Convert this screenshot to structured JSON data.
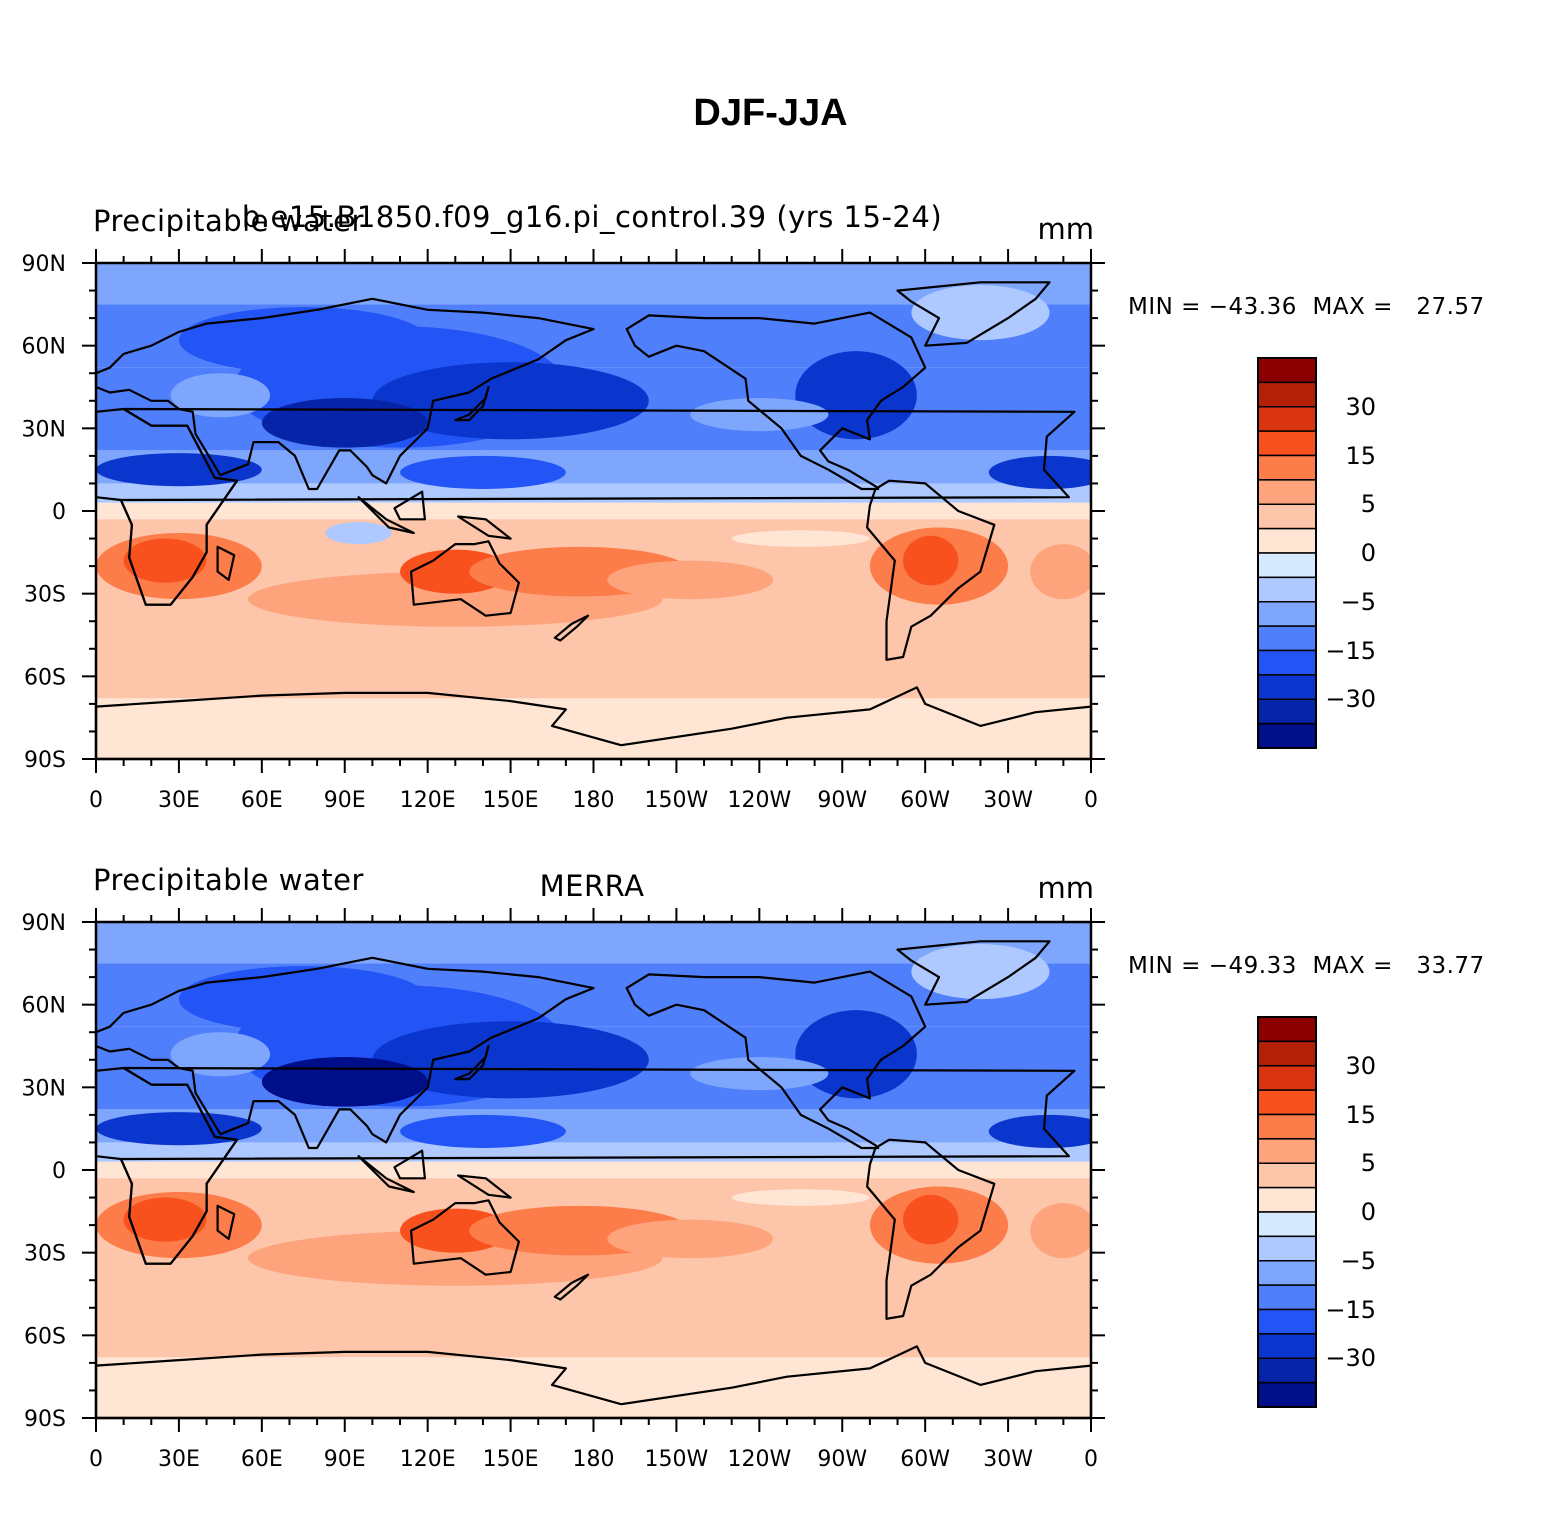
{
  "title": "DJF-JJA",
  "panels": [
    {
      "left_title": "Precipitable water",
      "center_title": "b.e15.B1850.f09_g16.pi_control.39 (yrs 15-24)",
      "right_title": "mm",
      "minmax": "MIN = −43.36  MAX =   27.57"
    },
    {
      "left_title": "Precipitable water",
      "center_title": "MERRA",
      "right_title": "mm",
      "minmax": "MIN = −49.33  MAX =   33.77"
    }
  ],
  "map": {
    "y_tick_labels": [
      "90N",
      "60N",
      "30N",
      "0",
      "30S",
      "60S",
      "90S"
    ],
    "x_tick_labels": [
      "0",
      "30E",
      "60E",
      "90E",
      "120E",
      "150E",
      "180",
      "150W",
      "120W",
      "90W",
      "60W",
      "30W",
      "0"
    ]
  },
  "colorbar": {
    "labels": [
      "30",
      "15",
      "5",
      "0",
      "−5",
      "−15",
      "−30"
    ],
    "colors": [
      "#8b0000",
      "#b22008",
      "#d93510",
      "#f9511e",
      "#fc7c4a",
      "#fda47d",
      "#fdc6aa",
      "#fee5d4",
      "#d6e9ff",
      "#aec9ff",
      "#7ea6fc",
      "#4f7ffb",
      "#2354f5",
      "#0b36cd",
      "#0524a8",
      "#000e8a"
    ]
  }
}
